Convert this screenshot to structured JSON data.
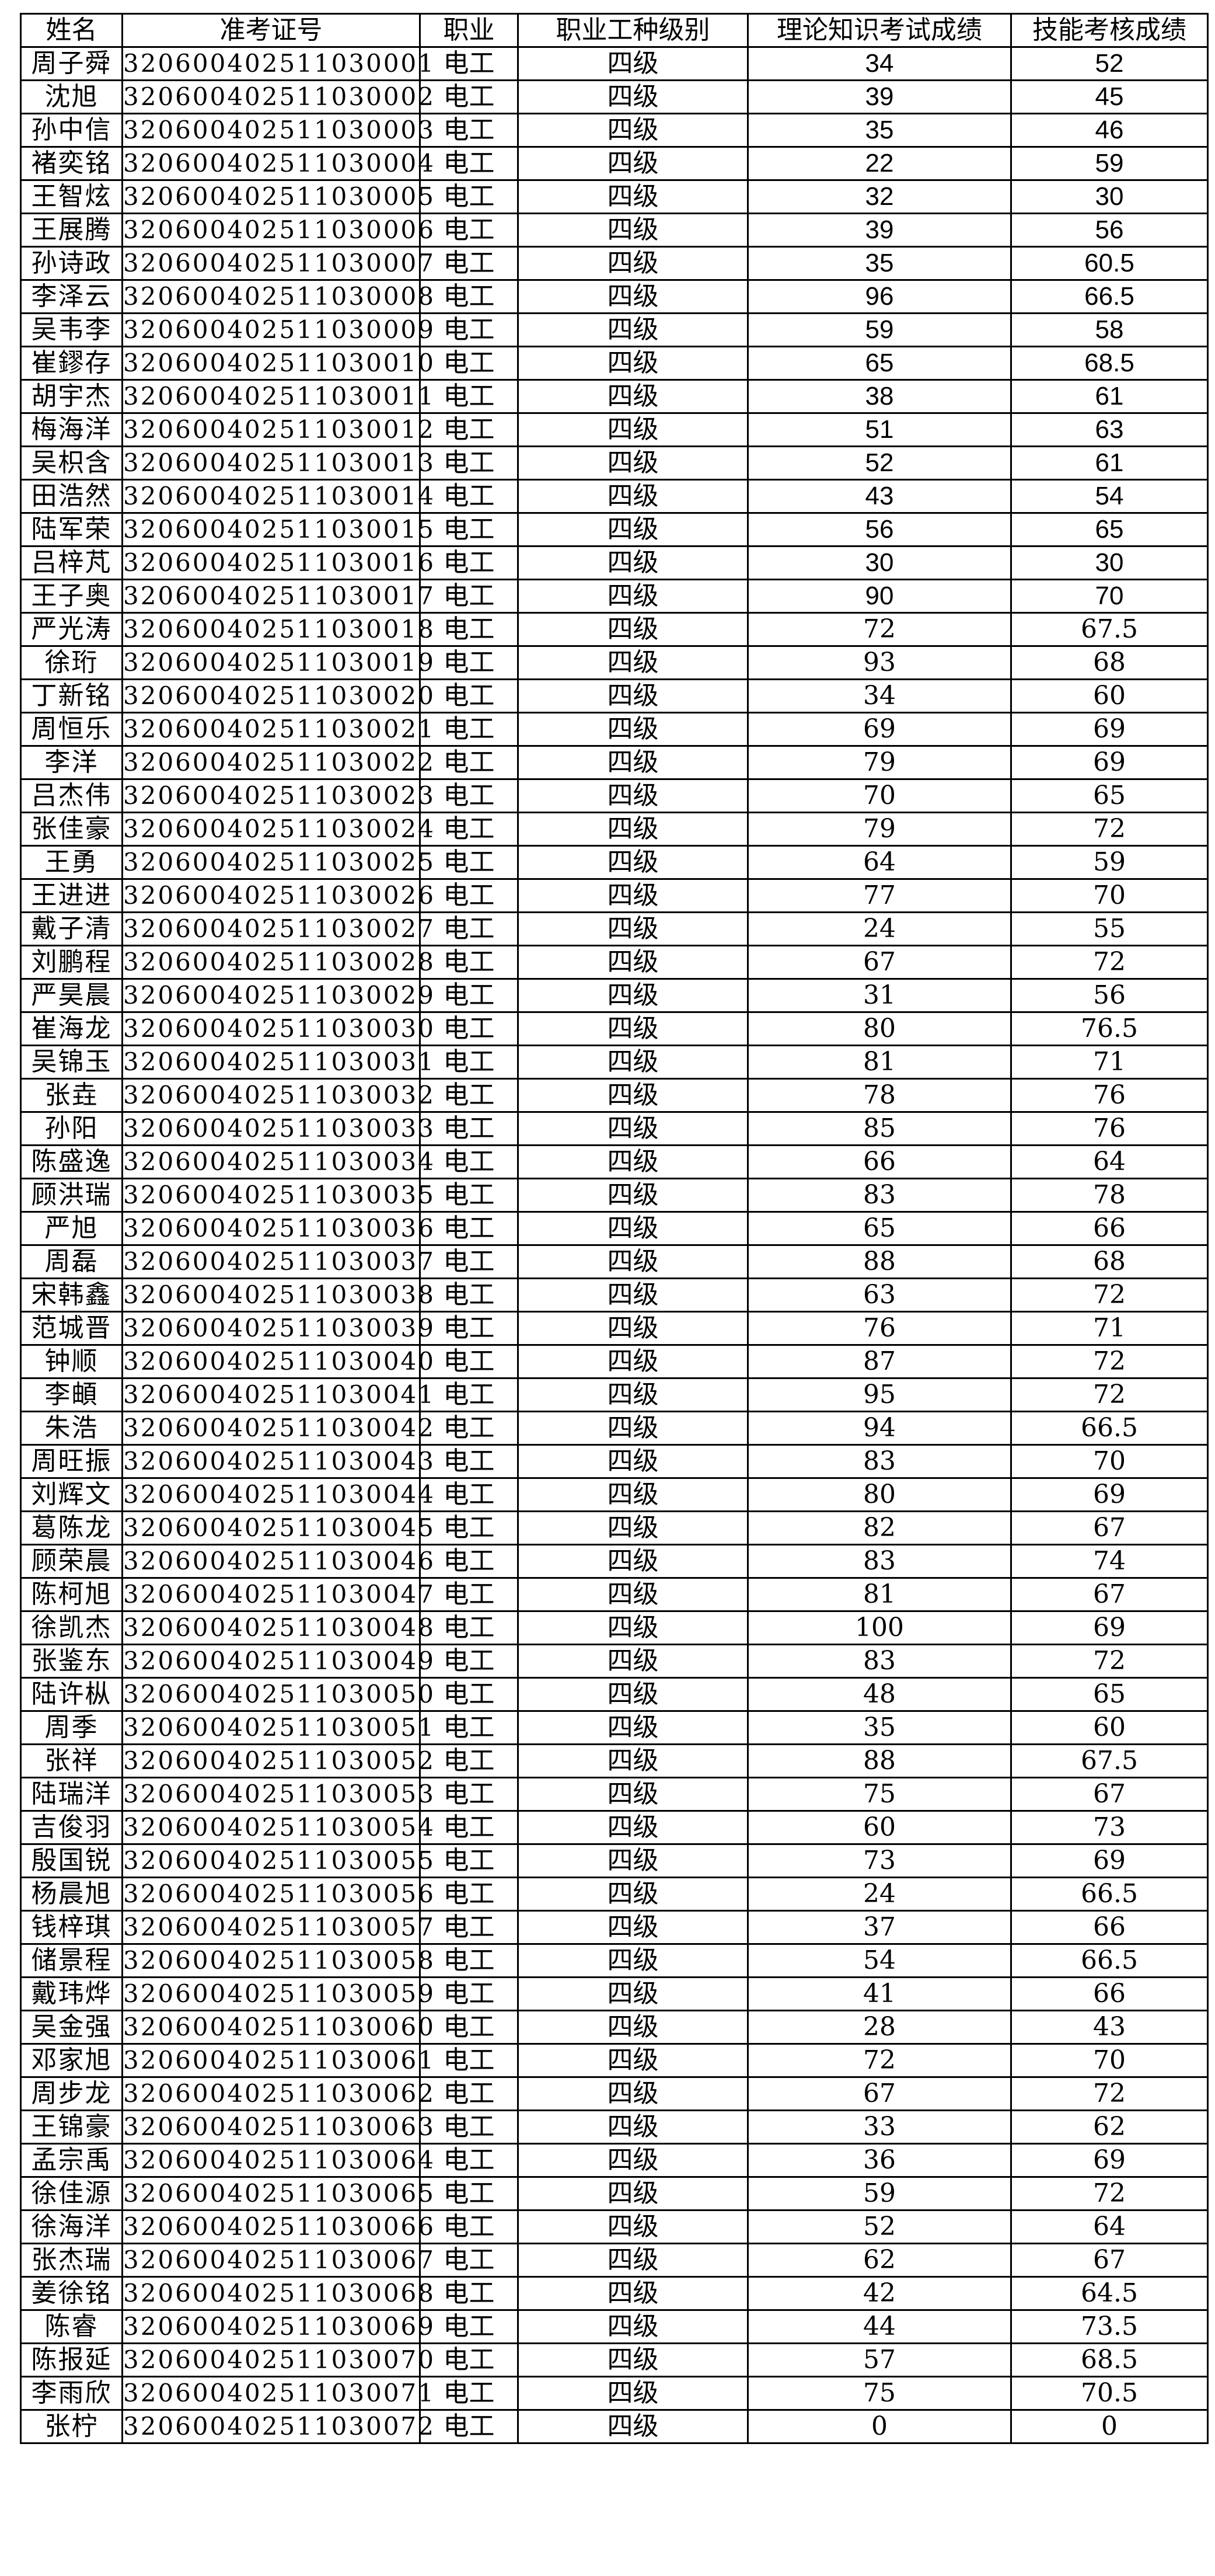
{
  "table": {
    "headers": [
      "姓名",
      "准考证号",
      "职业",
      "职业工种级别",
      "理论知识考试成绩",
      "技能考核成绩"
    ],
    "rows": [
      [
        "周子舜",
        "320600402511030001",
        "电工",
        "四级",
        "34",
        "52"
      ],
      [
        "沈旭",
        "320600402511030002",
        "电工",
        "四级",
        "39",
        "45"
      ],
      [
        "孙中信",
        "320600402511030003",
        "电工",
        "四级",
        "35",
        "46"
      ],
      [
        "褚奕铭",
        "320600402511030004",
        "电工",
        "四级",
        "22",
        "59"
      ],
      [
        "王智炫",
        "320600402511030005",
        "电工",
        "四级",
        "32",
        "30"
      ],
      [
        "王展腾",
        "320600402511030006",
        "电工",
        "四级",
        "39",
        "56"
      ],
      [
        "孙诗政",
        "320600402511030007",
        "电工",
        "四级",
        "35",
        "60.5"
      ],
      [
        "李泽云",
        "320600402511030008",
        "电工",
        "四级",
        "96",
        "66.5"
      ],
      [
        "吴韦李",
        "320600402511030009",
        "电工",
        "四级",
        "59",
        "58"
      ],
      [
        "崔鏐存",
        "320600402511030010",
        "电工",
        "四级",
        "65",
        "68.5"
      ],
      [
        "胡宇杰",
        "320600402511030011",
        "电工",
        "四级",
        "38",
        "61"
      ],
      [
        "梅海洋",
        "320600402511030012",
        "电工",
        "四级",
        "51",
        "63"
      ],
      [
        "吴枳含",
        "320600402511030013",
        "电工",
        "四级",
        "52",
        "61"
      ],
      [
        "田浩然",
        "320600402511030014",
        "电工",
        "四级",
        "43",
        "54"
      ],
      [
        "陆军荣",
        "320600402511030015",
        "电工",
        "四级",
        "56",
        "65"
      ],
      [
        "吕梓芃",
        "320600402511030016",
        "电工",
        "四级",
        "30",
        "30"
      ],
      [
        "王子奥",
        "320600402511030017",
        "电工",
        "四级",
        "90",
        "70"
      ],
      [
        "严光涛",
        "320600402511030018",
        "电工",
        "四级",
        "72",
        "67.5"
      ],
      [
        "徐珩",
        "320600402511030019",
        "电工",
        "四级",
        "93",
        "68"
      ],
      [
        "丁新铭",
        "320600402511030020",
        "电工",
        "四级",
        "34",
        "60"
      ],
      [
        "周恒乐",
        "320600402511030021",
        "电工",
        "四级",
        "69",
        "69"
      ],
      [
        "李洋",
        "320600402511030022",
        "电工",
        "四级",
        "79",
        "69"
      ],
      [
        "吕杰伟",
        "320600402511030023",
        "电工",
        "四级",
        "70",
        "65"
      ],
      [
        "张佳豪",
        "320600402511030024",
        "电工",
        "四级",
        "79",
        "72"
      ],
      [
        "王勇",
        "320600402511030025",
        "电工",
        "四级",
        "64",
        "59"
      ],
      [
        "王进进",
        "320600402511030026",
        "电工",
        "四级",
        "77",
        "70"
      ],
      [
        "戴子清",
        "320600402511030027",
        "电工",
        "四级",
        "24",
        "55"
      ],
      [
        "刘鹏程",
        "320600402511030028",
        "电工",
        "四级",
        "67",
        "72"
      ],
      [
        "严昊晨",
        "320600402511030029",
        "电工",
        "四级",
        "31",
        "56"
      ],
      [
        "崔海龙",
        "320600402511030030",
        "电工",
        "四级",
        "80",
        "76.5"
      ],
      [
        "吴锦玉",
        "320600402511030031",
        "电工",
        "四级",
        "81",
        "71"
      ],
      [
        "张垚",
        "320600402511030032",
        "电工",
        "四级",
        "78",
        "76"
      ],
      [
        "孙阳",
        "320600402511030033",
        "电工",
        "四级",
        "85",
        "76"
      ],
      [
        "陈盛逸",
        "320600402511030034",
        "电工",
        "四级",
        "66",
        "64"
      ],
      [
        "顾洪瑞",
        "320600402511030035",
        "电工",
        "四级",
        "83",
        "78"
      ],
      [
        "严旭",
        "320600402511030036",
        "电工",
        "四级",
        "65",
        "66"
      ],
      [
        "周磊",
        "320600402511030037",
        "电工",
        "四级",
        "88",
        "68"
      ],
      [
        "宋韩鑫",
        "320600402511030038",
        "电工",
        "四级",
        "63",
        "72"
      ],
      [
        "范城晋",
        "320600402511030039",
        "电工",
        "四级",
        "76",
        "71"
      ],
      [
        "钟顺",
        "320600402511030040",
        "电工",
        "四级",
        "87",
        "72"
      ],
      [
        "李頔",
        "320600402511030041",
        "电工",
        "四级",
        "95",
        "72"
      ],
      [
        "朱浩",
        "320600402511030042",
        "电工",
        "四级",
        "94",
        "66.5"
      ],
      [
        "周旺振",
        "320600402511030043",
        "电工",
        "四级",
        "83",
        "70"
      ],
      [
        "刘辉文",
        "320600402511030044",
        "电工",
        "四级",
        "80",
        "69"
      ],
      [
        "葛陈龙",
        "320600402511030045",
        "电工",
        "四级",
        "82",
        "67"
      ],
      [
        "顾荣晨",
        "320600402511030046",
        "电工",
        "四级",
        "83",
        "74"
      ],
      [
        "陈柯旭",
        "320600402511030047",
        "电工",
        "四级",
        "81",
        "67"
      ],
      [
        "徐凯杰",
        "320600402511030048",
        "电工",
        "四级",
        "100",
        "69"
      ],
      [
        "张鉴东",
        "320600402511030049",
        "电工",
        "四级",
        "83",
        "72"
      ],
      [
        "陆许枞",
        "320600402511030050",
        "电工",
        "四级",
        "48",
        "65"
      ],
      [
        "周季",
        "320600402511030051",
        "电工",
        "四级",
        "35",
        "60"
      ],
      [
        "张祥",
        "320600402511030052",
        "电工",
        "四级",
        "88",
        "67.5"
      ],
      [
        "陆瑞洋",
        "320600402511030053",
        "电工",
        "四级",
        "75",
        "67"
      ],
      [
        "吉俊羽",
        "320600402511030054",
        "电工",
        "四级",
        "60",
        "73"
      ],
      [
        "殷国锐",
        "320600402511030055",
        "电工",
        "四级",
        "73",
        "69"
      ],
      [
        "杨晨旭",
        "320600402511030056",
        "电工",
        "四级",
        "24",
        "66.5"
      ],
      [
        "钱梓琪",
        "320600402511030057",
        "电工",
        "四级",
        "37",
        "66"
      ],
      [
        "储景程",
        "320600402511030058",
        "电工",
        "四级",
        "54",
        "66.5"
      ],
      [
        "戴玮烨",
        "320600402511030059",
        "电工",
        "四级",
        "41",
        "66"
      ],
      [
        "吴金强",
        "320600402511030060",
        "电工",
        "四级",
        "28",
        "43"
      ],
      [
        "邓家旭",
        "320600402511030061",
        "电工",
        "四级",
        "72",
        "70"
      ],
      [
        "周步龙",
        "320600402511030062",
        "电工",
        "四级",
        "67",
        "72"
      ],
      [
        "王锦豪",
        "320600402511030063",
        "电工",
        "四级",
        "33",
        "62"
      ],
      [
        "孟宗禹",
        "320600402511030064",
        "电工",
        "四级",
        "36",
        "69"
      ],
      [
        "徐佳源",
        "320600402511030065",
        "电工",
        "四级",
        "59",
        "72"
      ],
      [
        "徐海洋",
        "320600402511030066",
        "电工",
        "四级",
        "52",
        "64"
      ],
      [
        "张杰瑞",
        "320600402511030067",
        "电工",
        "四级",
        "62",
        "67"
      ],
      [
        "姜徐铭",
        "320600402511030068",
        "电工",
        "四级",
        "42",
        "64.5"
      ],
      [
        "陈睿",
        "320600402511030069",
        "电工",
        "四级",
        "44",
        "73.5"
      ],
      [
        "陈报延",
        "320600402511030070",
        "电工",
        "四级",
        "57",
        "68.5"
      ],
      [
        "李雨欣",
        "320600402511030071",
        "电工",
        "四级",
        "75",
        "70.5"
      ],
      [
        "张柠",
        "320600402511030072",
        "电工",
        "四级",
        "0",
        "0"
      ]
    ]
  }
}
